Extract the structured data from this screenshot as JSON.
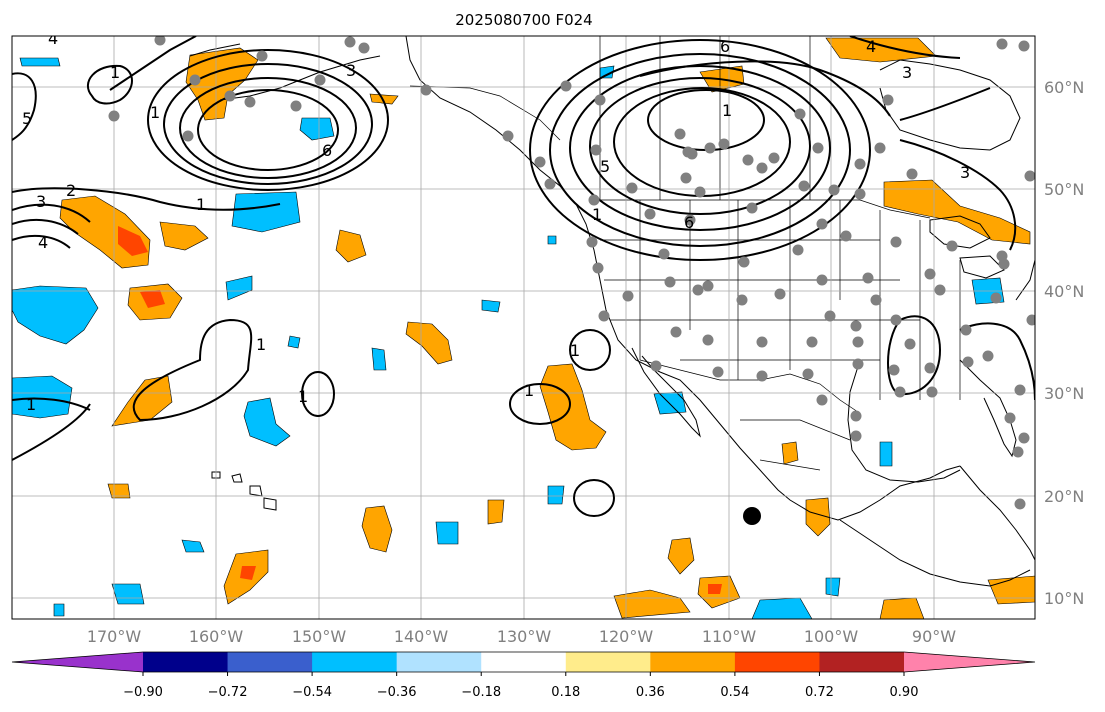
{
  "title": "2025080700 F024",
  "longitude_labels": [
    "170°W",
    "160°W",
    "150°W",
    "140°W",
    "130°W",
    "120°W",
    "110°W",
    "100°W",
    "90°W"
  ],
  "latitude_labels": [
    "60°N",
    "50°N",
    "40°N",
    "30°N",
    "20°N",
    "10°N"
  ],
  "colorbar": {
    "ticks": [
      "−0.90",
      "−0.72",
      "−0.54",
      "−0.36",
      "−0.18",
      "0.18",
      "0.36",
      "0.54",
      "0.72",
      "0.90"
    ],
    "colors": [
      "#9932cc",
      "#00008b",
      "#3a5fcd",
      "#00bfff",
      "#b0e2ff",
      "#ffffff",
      "#ffec8b",
      "#ffa500",
      "#ff4500",
      "#b22222",
      "#ff82ab"
    ]
  },
  "contour_labels": [
    "1",
    "1",
    "3",
    "4",
    "5",
    "6",
    "1",
    "2",
    "3",
    "4",
    "1",
    "6",
    "1",
    "4",
    "3",
    "3",
    "5",
    "6",
    "1",
    "1",
    "1",
    "1",
    "1"
  ],
  "colors": {
    "ocean_land": "#ffffff",
    "grid": "#a9a9a9",
    "station_dot": "#808080",
    "positive_fill": "#ffa500",
    "positive_strong": "#ff4500",
    "negative_fill": "#00bfff",
    "negative_light": "#b0e2ff"
  }
}
